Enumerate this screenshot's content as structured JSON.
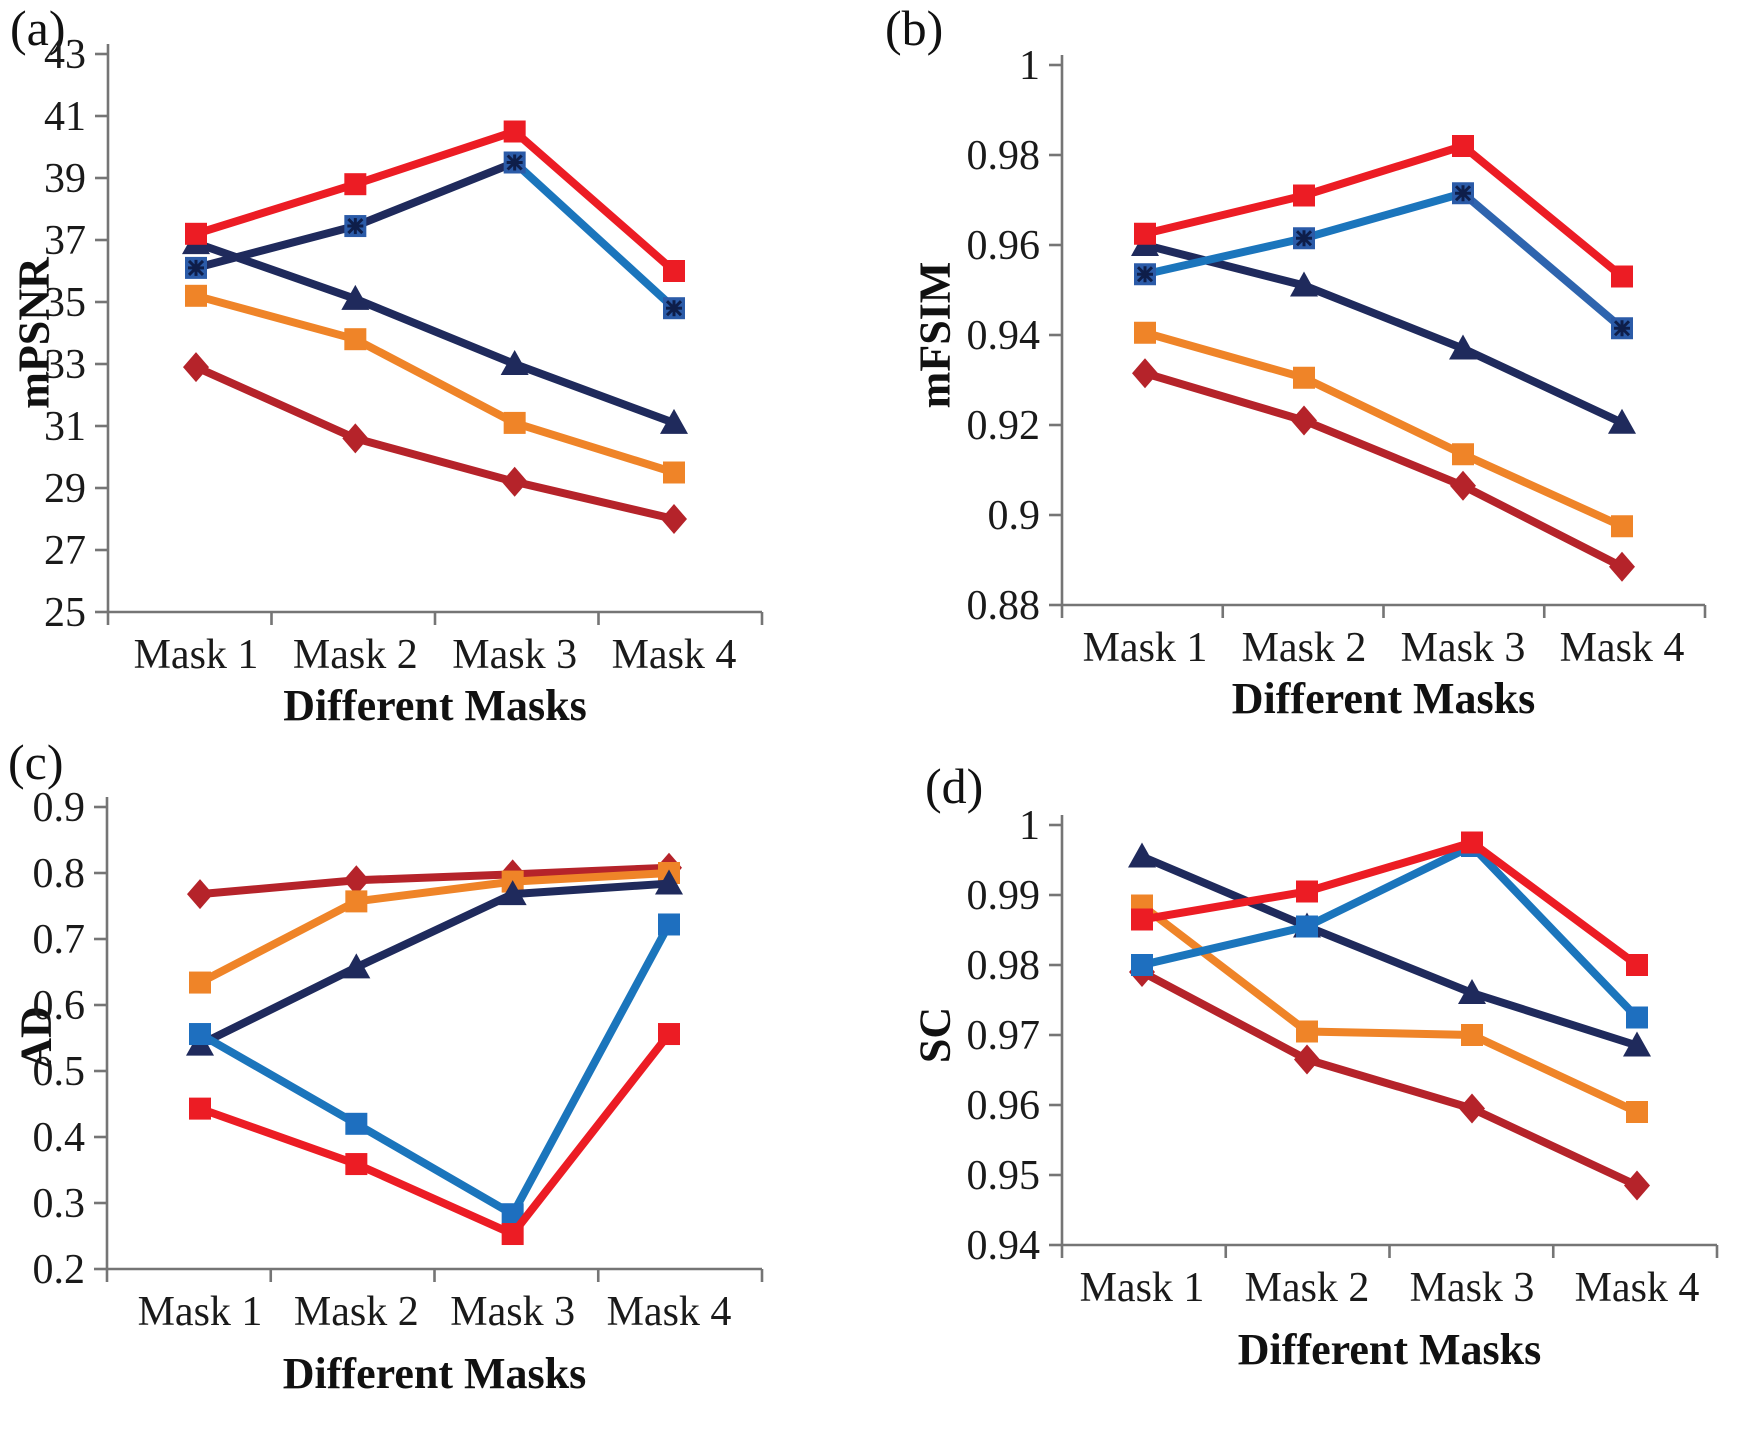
{
  "chart_data": [
    {
      "type": "line",
      "panel_label": "(a)",
      "ylabel": "mPSNR",
      "xlabel": "Different Masks",
      "categories": [
        "Mask 1",
        "Mask 2",
        "Mask 3",
        "Mask 4"
      ],
      "ylim": [
        25,
        43
      ],
      "ytick_values": [
        43,
        41,
        39,
        37,
        35,
        33,
        31,
        29,
        27,
        25
      ],
      "ytick_labels": [
        "43",
        "41",
        "39",
        "37",
        "35",
        "33",
        "31",
        "29",
        "27",
        "25"
      ],
      "grid": false,
      "legend": "none",
      "series": [
        {
          "name": "method-darkred-diamond",
          "color": "#B5232A",
          "marker": "diamond",
          "values": [
            32.9,
            30.6,
            29.2,
            28.0
          ]
        },
        {
          "name": "method-orange-square",
          "color": "#EF8428",
          "marker": "square",
          "values": [
            35.2,
            33.8,
            31.1,
            29.5
          ]
        },
        {
          "name": "method-navy-triangle",
          "color": "#1F2A5C",
          "marker": "triangle",
          "values": [
            36.9,
            35.1,
            33.0,
            31.1
          ]
        },
        {
          "name": "method-blue-asterisk",
          "color": "#1B75BC",
          "marker": "square-asterisk",
          "marker_fill": "#2B5BA8",
          "segment_colors": [
            "#1F2A5C",
            "#1F2A5C",
            "#1B75BC"
          ],
          "values": [
            36.1,
            37.45,
            39.5,
            34.8
          ]
        },
        {
          "name": "method-red-square",
          "color": "#EC1C24",
          "marker": "square",
          "values": [
            37.2,
            38.8,
            40.5,
            36.0
          ]
        }
      ]
    },
    {
      "type": "line",
      "panel_label": "(b)",
      "ylabel": "mFSIM",
      "xlabel": "Different Masks",
      "categories": [
        "Mask 1",
        "Mask 2",
        "Mask 3",
        "Mask 4"
      ],
      "ylim": [
        0.88,
        1
      ],
      "ytick_values": [
        1,
        0.98,
        0.96,
        0.94,
        0.92,
        0.9,
        0.88
      ],
      "ytick_labels": [
        "1",
        "0.98",
        "0.96",
        "0.94",
        "0.92",
        "0.9",
        "0.88"
      ],
      "grid": false,
      "legend": "none",
      "series": [
        {
          "name": "method-darkred-diamond",
          "color": "#B5232A",
          "marker": "diamond",
          "values": [
            0.9315,
            0.921,
            0.9065,
            0.8885
          ]
        },
        {
          "name": "method-orange-square",
          "color": "#EF8428",
          "marker": "square",
          "values": [
            0.9405,
            0.9305,
            0.9135,
            0.8975
          ]
        },
        {
          "name": "method-navy-triangle",
          "color": "#1F2A5C",
          "marker": "triangle",
          "values": [
            0.96,
            0.951,
            0.937,
            0.9205
          ]
        },
        {
          "name": "method-blue-asterisk",
          "color": "#1B75BC",
          "marker": "square-asterisk",
          "marker_fill": "#2B5BA8",
          "segment_colors": [
            "#1B75BC",
            "#1B75BC",
            "#2E64AE"
          ],
          "values": [
            0.9535,
            0.9615,
            0.9715,
            0.9415
          ]
        },
        {
          "name": "method-red-square",
          "color": "#EC1C24",
          "marker": "square",
          "values": [
            0.9625,
            0.971,
            0.982,
            0.953
          ]
        }
      ]
    },
    {
      "type": "line",
      "panel_label": "(c)",
      "ylabel": "AD",
      "xlabel": "Different Masks",
      "categories": [
        "Mask 1",
        "Mask 2",
        "Mask 3",
        "Mask 4"
      ],
      "ylim": [
        0.2,
        0.9
      ],
      "ytick_values": [
        0.9,
        0.8,
        0.7,
        0.6,
        0.5,
        0.4,
        0.3,
        0.2
      ],
      "ytick_labels": [
        "0.9",
        "0.8",
        "0.7",
        "0.6",
        "0.5",
        "0.4",
        "0.3",
        "0.2"
      ],
      "grid": false,
      "legend": "none",
      "series": [
        {
          "name": "method-darkred-diamond",
          "color": "#B5232A",
          "marker": "diamond",
          "values": [
            0.768,
            0.789,
            0.798,
            0.808
          ]
        },
        {
          "name": "method-orange-square",
          "color": "#EF8428",
          "marker": "square",
          "values": [
            0.634,
            0.757,
            0.787,
            0.8
          ]
        },
        {
          "name": "method-navy-triangle",
          "color": "#1F2A5C",
          "marker": "triangle",
          "values": [
            0.54,
            0.657,
            0.768,
            0.784
          ]
        },
        {
          "name": "method-blue-square",
          "color": "#1B75BC",
          "marker": "square",
          "marker_fill": "#1E6FBF",
          "values": [
            0.556,
            0.42,
            0.283,
            0.722
          ]
        },
        {
          "name": "method-red-square",
          "color": "#EC1C24",
          "marker": "square",
          "values": [
            0.443,
            0.359,
            0.253,
            0.556
          ]
        }
      ]
    },
    {
      "type": "line",
      "panel_label": "(d)",
      "ylabel": "SC",
      "xlabel": "Different Masks",
      "categories": [
        "Mask 1",
        "Mask 2",
        "Mask 3",
        "Mask 4"
      ],
      "ylim": [
        0.94,
        1
      ],
      "ytick_values": [
        1,
        0.99,
        0.98,
        0.97,
        0.96,
        0.95,
        0.94
      ],
      "ytick_labels": [
        "1",
        "0.99",
        "0.98",
        "0.97",
        "0.96",
        "0.95",
        "0.94"
      ],
      "grid": false,
      "legend": "none",
      "series": [
        {
          "name": "method-darkred-diamond",
          "color": "#B5232A",
          "marker": "diamond",
          "values": [
            0.979,
            0.9665,
            0.9595,
            0.9485
          ]
        },
        {
          "name": "method-orange-square",
          "color": "#EF8428",
          "marker": "square",
          "values": [
            0.9885,
            0.9705,
            0.97,
            0.959
          ]
        },
        {
          "name": "method-navy-triangle",
          "color": "#1F2A5C",
          "marker": "triangle",
          "values": [
            0.9955,
            0.9855,
            0.976,
            0.9685
          ]
        },
        {
          "name": "method-blue-square",
          "color": "#1B75BC",
          "marker": "square",
          "marker_fill": "#1E6FBF",
          "values": [
            0.98,
            0.9855,
            0.997,
            0.9725
          ]
        },
        {
          "name": "method-red-square",
          "color": "#EC1C24",
          "marker": "square",
          "values": [
            0.9865,
            0.9905,
            0.9975,
            0.98
          ]
        }
      ]
    }
  ],
  "axis_color": "#757575",
  "text_color": "#1a1a1a"
}
